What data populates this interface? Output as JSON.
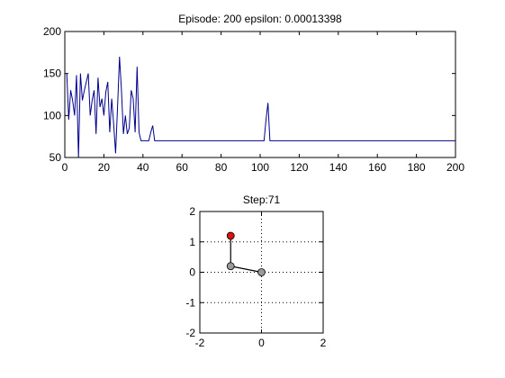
{
  "figure": {
    "background": "#ffffff"
  },
  "chart_data": [
    {
      "type": "line",
      "title": "Episode: 200 epsilon: 0.00013398",
      "xlabel": "",
      "ylabel": "",
      "xlim": [
        0,
        200
      ],
      "ylim": [
        50,
        200
      ],
      "xticks": [
        0,
        20,
        40,
        60,
        80,
        100,
        120,
        140,
        160,
        180,
        200
      ],
      "yticks": [
        50,
        100,
        150,
        200
      ],
      "grid": false,
      "line_color": "#00008b",
      "series": [
        {
          "name": "",
          "x": [
            1,
            2,
            3,
            4,
            5,
            6,
            7,
            8,
            9,
            10,
            11,
            12,
            13,
            14,
            15,
            16,
            17,
            18,
            19,
            20,
            21,
            22,
            23,
            24,
            25,
            26,
            27,
            28,
            29,
            30,
            31,
            32,
            33,
            34,
            35,
            36,
            37,
            38,
            39,
            40,
            41,
            42,
            43,
            44,
            45,
            46,
            47,
            48,
            49,
            50,
            60,
            80,
            100,
            102,
            103,
            104,
            105,
            106,
            120,
            140,
            160,
            180,
            200
          ],
          "y": [
            150,
            95,
            130,
            118,
            100,
            148,
            50,
            150,
            118,
            130,
            140,
            150,
            100,
            118,
            130,
            78,
            145,
            110,
            120,
            100,
            128,
            140,
            80,
            120,
            90,
            55,
            110,
            170,
            130,
            78,
            100,
            78,
            85,
            130,
            120,
            80,
            158,
            80,
            70,
            70,
            70,
            70,
            70,
            80,
            88,
            70,
            70,
            70,
            70,
            70,
            70,
            70,
            70,
            70,
            95,
            115,
            70,
            70,
            70,
            70,
            70,
            70,
            70
          ]
        }
      ]
    },
    {
      "type": "scatter",
      "title": "Step:71",
      "xlabel": "",
      "ylabel": "",
      "xlim": [
        -2,
        2
      ],
      "ylim": [
        -2,
        2
      ],
      "xticks": [
        -2,
        0,
        2
      ],
      "yticks": [
        -2,
        -1,
        0,
        1,
        2
      ],
      "grid": true,
      "links": [
        [
          0,
          1
        ],
        [
          1,
          2
        ]
      ],
      "points": [
        {
          "x": 0,
          "y": 0,
          "color": "#9a9a9a"
        },
        {
          "x": -1,
          "y": 0.2,
          "color": "#9a9a9a"
        },
        {
          "x": -1,
          "y": 1.2,
          "color": "#dd1111"
        }
      ]
    }
  ]
}
